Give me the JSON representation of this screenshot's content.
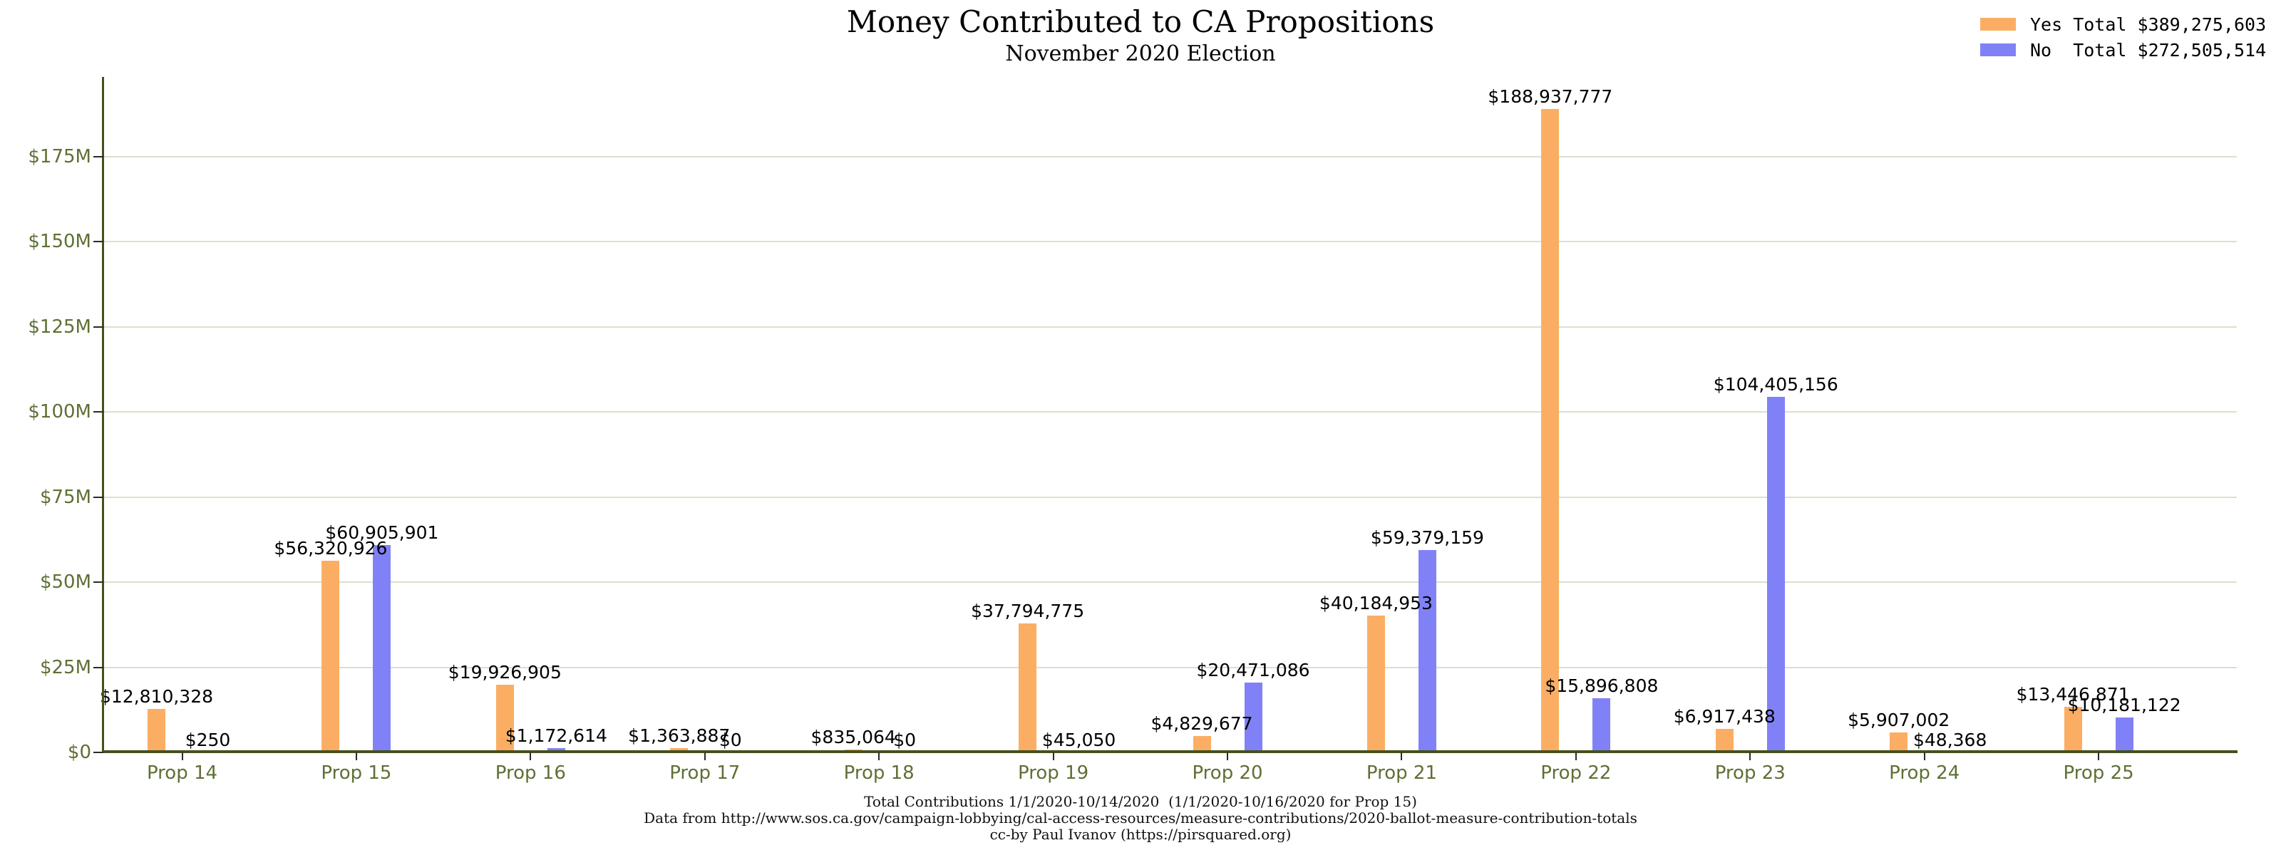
{
  "title": "Money Contributed to CA Propositions",
  "subtitle": "November 2020 Election",
  "legend": {
    "entries": [
      {
        "series": "Yes",
        "label": "Yes Total $389,275,603",
        "color": "#fbae63"
      },
      {
        "series": "No",
        "label": "No  Total $272,505,514",
        "color": "#8181f7"
      }
    ]
  },
  "footer": {
    "line1": "Total Contributions 1/1/2020-10/14/2020  (1/1/2020-10/16/2020 for Prop 15)",
    "line2": "Data from http://www.sos.ca.gov/campaign-lobbying/cal-access-resources/measure-contributions/2020-ballot-measure-contribution-totals",
    "line3": "cc-by Paul Ivanov (https://pirsquared.org)"
  },
  "chart_data": {
    "type": "bar",
    "categories": [
      "Prop 14",
      "Prop 15",
      "Prop 16",
      "Prop 17",
      "Prop 18",
      "Prop 19",
      "Prop 20",
      "Prop 21",
      "Prop 22",
      "Prop 23",
      "Prop 24",
      "Prop 25"
    ],
    "series": [
      {
        "name": "Yes",
        "color": "#fbae63",
        "values": [
          12810328,
          56320926,
          19926905,
          1363887,
          835064,
          37794775,
          4829677,
          40184953,
          188937777,
          6917438,
          5907002,
          13446871
        ],
        "total": 389275603
      },
      {
        "name": "No",
        "color": "#8181f7",
        "values": [
          250,
          60905901,
          1172614,
          0,
          0,
          45050,
          20471086,
          59379159,
          15896808,
          104405156,
          48368,
          10181122
        ],
        "total": 272505514
      }
    ],
    "value_label_prefix": "$",
    "ytick_labels": [
      "$0",
      "$25M",
      "$50M",
      "$75M",
      "$100M",
      "$125M",
      "$150M",
      "$175M"
    ],
    "ytick_values": [
      0,
      25000000,
      50000000,
      75000000,
      100000000,
      125000000,
      150000000,
      175000000
    ],
    "ylim": [
      0,
      198400000
    ],
    "grid": true,
    "legend_position": "top-right",
    "xlabel": "",
    "ylabel": ""
  },
  "colors": {
    "yes_bar": "#fbae63",
    "no_bar": "#8181f7",
    "axis_text": "#5e7034",
    "spine": "#44511e",
    "gridline": "#d9e2ca",
    "value_text": "#000000",
    "background": "#ffffff"
  }
}
